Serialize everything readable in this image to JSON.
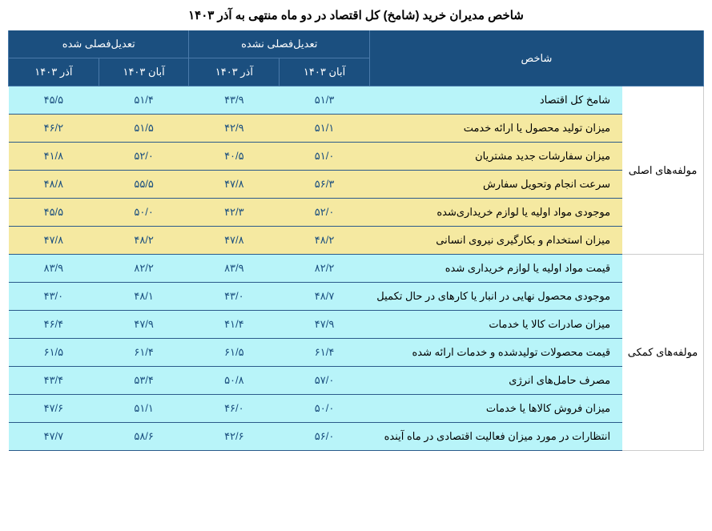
{
  "title": "شاخص مدیران خرید (شامخ) کل اقتصاد در دو ماه منتهی به آذر ۱۴۰۳",
  "header": {
    "index_label": "شاخص",
    "unadjusted": "تعدیل‌فصلی نشده",
    "adjusted": "تعدیل‌فصلی شده",
    "aban": "آبان ۱۴۰۳",
    "azar": "آذر ۱۴۰۳"
  },
  "group_main": "مولفه‌های اصلی",
  "group_aux": "مولفه‌های کمکی",
  "rows": [
    {
      "bg": "cyan",
      "label": "شامخ کل اقتصاد",
      "ua_aban": "۵۱/۳",
      "ua_azar": "۴۳/۹",
      "a_aban": "۵۱/۴",
      "a_azar": "۴۵/۵"
    },
    {
      "bg": "yellow",
      "label": "میزان تولید محصول یا ارائه خدمت",
      "ua_aban": "۵۱/۱",
      "ua_azar": "۴۲/۹",
      "a_aban": "۵۱/۵",
      "a_azar": "۴۶/۲"
    },
    {
      "bg": "yellow",
      "label": "میزان سفارشات جدید مشتریان",
      "ua_aban": "۵۱/۰",
      "ua_azar": "۴۰/۵",
      "a_aban": "۵۲/۰",
      "a_azar": "۴۱/۸"
    },
    {
      "bg": "yellow",
      "label": "سرعت انجام وتحویل سفارش",
      "ua_aban": "۵۶/۳",
      "ua_azar": "۴۷/۸",
      "a_aban": "۵۵/۵",
      "a_azar": "۴۸/۸"
    },
    {
      "bg": "yellow",
      "label": "موجودی مواد اولیه یا لوازم خریداری‌شده",
      "ua_aban": "۵۲/۰",
      "ua_azar": "۴۲/۳",
      "a_aban": "۵۰/۰",
      "a_azar": "۴۵/۵"
    },
    {
      "bg": "yellow",
      "label": "میزان استخدام و بکارگیری نیروی انسانی",
      "ua_aban": "۴۸/۲",
      "ua_azar": "۴۷/۸",
      "a_aban": "۴۸/۲",
      "a_azar": "۴۷/۸"
    },
    {
      "bg": "cyan",
      "label": "قیمت مواد اولیه یا لوازم خریداری شده",
      "ua_aban": "۸۲/۲",
      "ua_azar": "۸۳/۹",
      "a_aban": "۸۲/۲",
      "a_azar": "۸۳/۹"
    },
    {
      "bg": "cyan",
      "label": "موجودی محصول نهایی در انبار یا کارهای در حال تکمیل",
      "ua_aban": "۴۸/۷",
      "ua_azar": "۴۳/۰",
      "a_aban": "۴۸/۱",
      "a_azar": "۴۳/۰"
    },
    {
      "bg": "cyan",
      "label": "میزان صادرات کالا یا خدمات",
      "ua_aban": "۴۷/۹",
      "ua_azar": "۴۱/۴",
      "a_aban": "۴۷/۹",
      "a_azar": "۴۶/۴"
    },
    {
      "bg": "cyan",
      "label": "قیمت محصولات تولیدشده و خدمات ارائه شده",
      "ua_aban": "۶۱/۴",
      "ua_azar": "۶۱/۵",
      "a_aban": "۶۱/۴",
      "a_azar": "۶۱/۵"
    },
    {
      "bg": "cyan",
      "label": "مصرف حامل‌های انرژی",
      "ua_aban": "۵۷/۰",
      "ua_azar": "۵۰/۸",
      "a_aban": "۵۳/۴",
      "a_azar": "۴۳/۴"
    },
    {
      "bg": "cyan",
      "label": "میزان فروش کالاها یا خدمات",
      "ua_aban": "۵۰/۰",
      "ua_azar": "۴۶/۰",
      "a_aban": "۵۱/۱",
      "a_azar": "۴۷/۶"
    },
    {
      "bg": "cyan",
      "label": "انتظارات در مورد میزان فعالیت اقتصادی در ماه آینده",
      "ua_aban": "۵۶/۰",
      "ua_azar": "۴۲/۶",
      "a_aban": "۵۸/۶",
      "a_azar": "۴۷/۷"
    }
  ],
  "colors": {
    "header_bg": "#1b4f7f",
    "header_border": "#4a7aaa",
    "cyan_bg": "#b8f4f9",
    "yellow_bg": "#f5e9a1",
    "value_color": "#1b4f7f",
    "row_border": "#2b5a8a"
  }
}
